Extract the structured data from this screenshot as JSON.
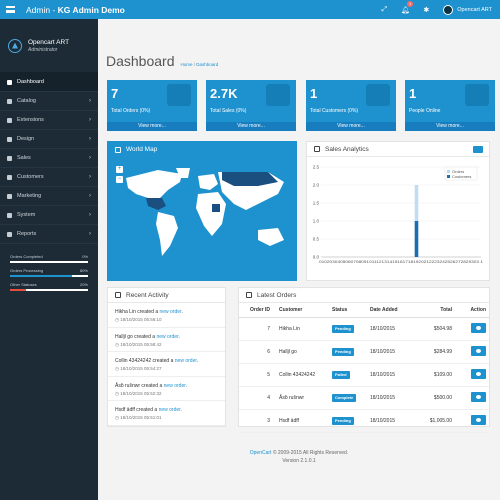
{
  "header": {
    "title_prefix": "Admin - ",
    "title_bold": "KG Admin Demo",
    "notification_count": "1",
    "user_name": "Opencart ART"
  },
  "profile": {
    "name": "Opencart ART",
    "role": "Administrator"
  },
  "sidebar": {
    "items": [
      {
        "label": "Dashboard",
        "icon": "dashboard-icon"
      },
      {
        "label": "Catalog",
        "icon": "tag-icon"
      },
      {
        "label": "Extensions",
        "icon": "puzzle-icon"
      },
      {
        "label": "Design",
        "icon": "desktop-icon"
      },
      {
        "label": "Sales",
        "icon": "cart-icon"
      },
      {
        "label": "Customers",
        "icon": "user-icon"
      },
      {
        "label": "Marketing",
        "icon": "share-icon"
      },
      {
        "label": "System",
        "icon": "cog-icon"
      },
      {
        "label": "Reports",
        "icon": "bar-chart-icon"
      }
    ],
    "stats": [
      {
        "label": "Orders Completed",
        "value": "0%",
        "color": "#4cb64c",
        "fraction": 0
      },
      {
        "label": "Orders Processing",
        "value": "80%",
        "color": "#1e91cf",
        "fraction": 0.8
      },
      {
        "label": "Other Statuses",
        "value": "20%",
        "color": "#e3503e",
        "fraction": 0.2
      }
    ]
  },
  "page": {
    "title": "Dashboard",
    "breadcrumb_home": "Home",
    "breadcrumb_sep": " / ",
    "breadcrumb_current": "Dashboard"
  },
  "tiles": [
    {
      "value": "7",
      "label": "Total Orders (0%)",
      "link": "View more..."
    },
    {
      "value": "2.7K",
      "label": "Total Sales (0%)",
      "link": "View more..."
    },
    {
      "value": "1",
      "label": "Total Customers (0%)",
      "link": "View more..."
    },
    {
      "value": "1",
      "label": "People Online",
      "link": "View more..."
    }
  ],
  "world_map": {
    "title": "World Map"
  },
  "sales_analytics": {
    "title": "Sales Analytics",
    "chart_data": {
      "type": "bar",
      "categories": [
        "01",
        "02",
        "03",
        "04",
        "05",
        "06",
        "07",
        "08",
        "09",
        "10",
        "11",
        "12",
        "13",
        "14",
        "15",
        "16",
        "17",
        "18",
        "19",
        "20",
        "21",
        "22",
        "23",
        "24",
        "25",
        "26",
        "27",
        "28",
        "29",
        "30",
        "31"
      ],
      "series": [
        {
          "name": "Orders",
          "color": "#b9d9f0",
          "values": [
            0,
            0,
            0,
            0,
            0,
            0,
            0,
            0,
            0,
            0,
            0,
            0,
            0,
            0,
            0,
            0,
            0,
            0,
            2,
            0,
            0,
            0,
            0,
            0,
            0,
            0,
            0,
            0,
            0,
            0,
            0
          ]
        },
        {
          "name": "Customers",
          "color": "#1a6db3",
          "values": [
            0,
            0,
            0,
            0,
            0,
            0,
            0,
            0,
            0,
            0,
            0,
            0,
            0,
            0,
            0,
            0,
            0,
            0,
            1,
            0,
            0,
            0,
            0,
            0,
            0,
            0,
            0,
            0,
            0,
            0,
            0
          ]
        }
      ],
      "yticks": [
        "0.0",
        "0.5",
        "1.0",
        "1.5",
        "2.0",
        "2.5"
      ],
      "xtick_text": "0102030405060708091011121314151617181920212223242526272829303 1",
      "ylim": [
        0,
        2.5
      ],
      "legend": "top-right"
    }
  },
  "activity": {
    "title": "Recent Activity",
    "items": [
      {
        "name": "Hikha Lin",
        "text": " created a ",
        "link": "new order",
        "end": ".",
        "time": "18/10/2015 05:58:10"
      },
      {
        "name": "Halljl go",
        "text": " created a ",
        "link": "new order",
        "end": ".",
        "time": "18/10/2015 05:58:42"
      },
      {
        "name": "Collin 43424242",
        "text": " created a ",
        "link": "new order",
        "end": ".",
        "time": "18/10/2015 05:54:27"
      },
      {
        "name": "Åsḃ rušnwr",
        "text": " created a ",
        "link": "new order",
        "end": ".",
        "time": "18/10/2015 05:52:32"
      },
      {
        "name": "Hsdf ädff",
        "text": " created a ",
        "link": "new order",
        "end": ".",
        "time": "18/10/2015 05:51:01"
      }
    ]
  },
  "orders": {
    "title": "Latest Orders",
    "columns": [
      "Order ID",
      "Customer",
      "Status",
      "Date Added",
      "Total",
      "Action"
    ],
    "rows": [
      {
        "id": "7",
        "customer": "Hikha Lin",
        "status": "Pending",
        "status_color": "#1e91cf",
        "date": "18/10/2015",
        "total": "$504.98"
      },
      {
        "id": "6",
        "customer": "Halljl go",
        "status": "Pending",
        "status_color": "#1e91cf",
        "date": "18/10/2015",
        "total": "$284.99"
      },
      {
        "id": "5",
        "customer": "Collin 43424242",
        "status": "Failed",
        "status_color": "#1e91cf",
        "date": "18/10/2015",
        "total": "$109.00"
      },
      {
        "id": "4",
        "customer": "Åsḃ rušnwr",
        "status": "Complete",
        "status_color": "#1e91cf",
        "date": "18/10/2015",
        "total": "$500.00"
      },
      {
        "id": "3",
        "customer": "Hsdf ädff",
        "status": "Pending",
        "status_color": "#1e91cf",
        "date": "18/10/2015",
        "total": "$1,005.00"
      }
    ]
  },
  "footer": {
    "link": "OpenCart",
    "text": " © 2009-2015 All Rights Reserved.",
    "version": "Version 2.1.0.1"
  }
}
